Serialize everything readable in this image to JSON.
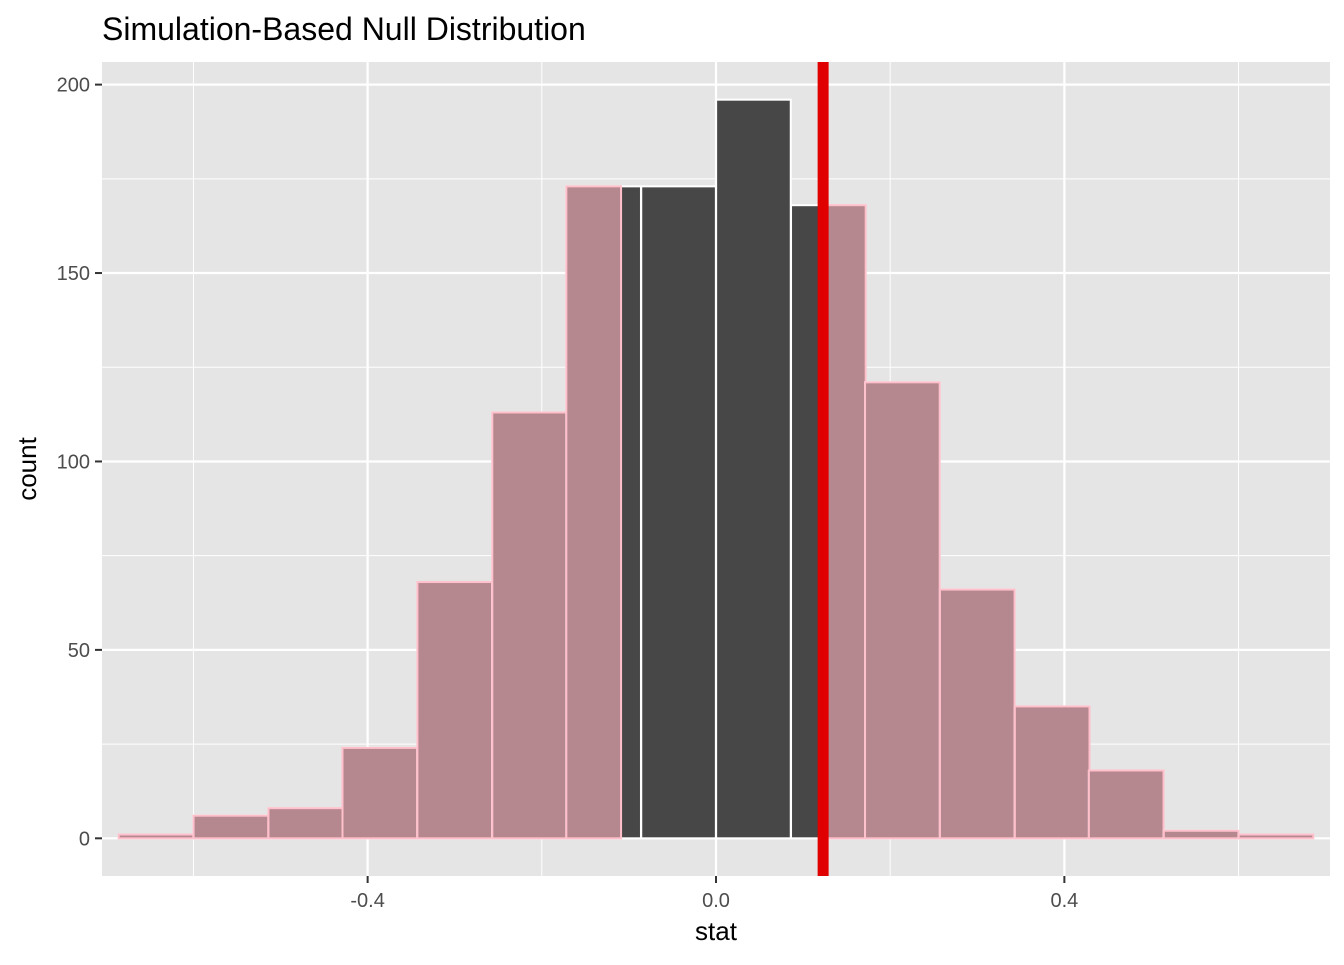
{
  "chart_data": {
    "type": "bar",
    "title": "Simulation-Based Null Distribution",
    "xlabel": "stat",
    "ylabel": "count",
    "xlim": [
      -0.705,
      0.705
    ],
    "ylim": [
      -10,
      206
    ],
    "x_ticks": [
      -0.4,
      0.0,
      0.4
    ],
    "x_tick_labels": [
      "-0.4",
      "0.0",
      "0.4"
    ],
    "y_ticks": [
      0,
      50,
      100,
      150,
      200
    ],
    "y_tick_labels": [
      "0",
      "50",
      "100",
      "150",
      "200"
    ],
    "grid": true,
    "bin_width": 0.0857,
    "bins": [
      {
        "center": -0.643,
        "count": 1,
        "shaded": true
      },
      {
        "center": -0.557,
        "count": 6,
        "shaded": true
      },
      {
        "center": -0.471,
        "count": 8,
        "shaded": true
      },
      {
        "center": -0.386,
        "count": 24,
        "shaded": true
      },
      {
        "center": -0.3,
        "count": 68,
        "shaded": true
      },
      {
        "center": -0.214,
        "count": 113,
        "shaded": true
      },
      {
        "center": -0.129,
        "count": 173,
        "shaded": true,
        "split_at": -0.109
      },
      {
        "center": -0.043,
        "count": 173,
        "shaded": false
      },
      {
        "center": 0.043,
        "count": 196,
        "shaded": false
      },
      {
        "center": 0.129,
        "count": 168,
        "shaded": false,
        "split_at": 0.123
      },
      {
        "center": 0.214,
        "count": 121,
        "shaded": true
      },
      {
        "center": 0.3,
        "count": 66,
        "shaded": true
      },
      {
        "center": 0.386,
        "count": 35,
        "shaded": true
      },
      {
        "center": 0.471,
        "count": 18,
        "shaded": true
      },
      {
        "center": 0.557,
        "count": 2,
        "shaded": true
      },
      {
        "center": 0.643,
        "count": 1,
        "shaded": true
      }
    ],
    "observed_stat": 0.123,
    "colors": {
      "panel_background": "#e5e5e5",
      "grid_line": "#ffffff",
      "bar_fill": "#474747",
      "shaded_fill": "#b5878f",
      "bar_outline": "#ffffff",
      "shaded_outline": "#ffc0cb",
      "observed_line": "#e00000"
    }
  }
}
